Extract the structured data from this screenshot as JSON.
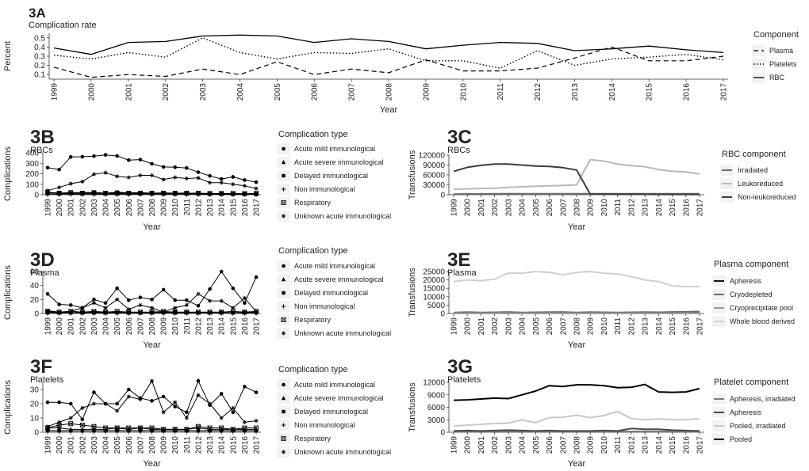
{
  "years": [
    "1999",
    "2000",
    "2001",
    "2002",
    "2003",
    "2004",
    "2005",
    "2006",
    "2007",
    "2008",
    "2009",
    "2010",
    "2011",
    "2012",
    "2013",
    "2014",
    "2015",
    "2016",
    "2017"
  ],
  "chart_data": [
    {
      "id": "3A",
      "letter": "3A",
      "subtitle": "Complication rate",
      "type": "line",
      "xlabel": "Year",
      "ylabel": "Percent",
      "ylim": [
        0.05,
        0.55
      ],
      "yticks": [
        0.1,
        0.2,
        0.3,
        0.4,
        0.5
      ],
      "ytick_labels": [
        "0.1",
        "0.2",
        "0.3",
        "0.4",
        "0.5"
      ],
      "legend_title": "Component",
      "legend_style": "line",
      "series": [
        {
          "name": "Plasma",
          "color": "#000000",
          "dash": "6,4",
          "width": 1.2,
          "values": [
            0.18,
            0.07,
            0.1,
            0.08,
            0.16,
            0.1,
            0.24,
            0.1,
            0.16,
            0.12,
            0.26,
            0.14,
            0.14,
            0.17,
            0.28,
            0.4,
            0.25,
            0.25,
            0.3
          ]
        },
        {
          "name": "Platelets",
          "color": "#000000",
          "dash": "1.5,2.5",
          "width": 1.4,
          "values": [
            0.31,
            0.27,
            0.34,
            0.29,
            0.5,
            0.34,
            0.27,
            0.34,
            0.33,
            0.38,
            0.25,
            0.25,
            0.17,
            0.36,
            0.2,
            0.27,
            0.29,
            0.32,
            0.26
          ]
        },
        {
          "name": "RBC",
          "color": "#000000",
          "dash": "",
          "width": 1.3,
          "values": [
            0.39,
            0.32,
            0.45,
            0.46,
            0.52,
            0.53,
            0.52,
            0.45,
            0.49,
            0.46,
            0.38,
            0.42,
            0.45,
            0.44,
            0.36,
            0.38,
            0.41,
            0.37,
            0.34
          ]
        }
      ]
    },
    {
      "id": "3B",
      "letter": "3B",
      "subtitle": "RBCs",
      "type": "line",
      "xlabel": "Year",
      "ylabel": "Complications",
      "ylim": [
        0,
        400
      ],
      "yticks": [
        0,
        100,
        200,
        300,
        400
      ],
      "ytick_labels": [
        "0",
        "100",
        "200",
        "300",
        "400"
      ],
      "legend_title": "Complication type",
      "legend_style": "marker",
      "series": [
        {
          "name": "Acute mild immunological",
          "marker": "dot",
          "color": "#000000",
          "values": [
            258,
            240,
            360,
            362,
            368,
            380,
            370,
            330,
            335,
            295,
            265,
            262,
            255,
            215,
            180,
            150,
            170,
            140,
            120
          ]
        },
        {
          "name": "Acute severe immunological",
          "marker": "triangle",
          "color": "#000000",
          "values": [
            10,
            8,
            12,
            10,
            11,
            10,
            9,
            10,
            9,
            8,
            8,
            7,
            8,
            7,
            6,
            6,
            5,
            5,
            4
          ]
        },
        {
          "name": "Delayed immunological",
          "marker": "square",
          "color": "#000000",
          "values": [
            20,
            15,
            18,
            20,
            22,
            15,
            25,
            18,
            20,
            15,
            18,
            15,
            16,
            12,
            10,
            10,
            8,
            8,
            10
          ]
        },
        {
          "name": "Non immunological",
          "marker": "plus",
          "color": "#000000",
          "values": [
            5,
            5,
            6,
            5,
            6,
            5,
            5,
            5,
            6,
            5,
            5,
            5,
            5,
            5,
            4,
            4,
            4,
            4,
            4
          ]
        },
        {
          "name": "Respiratory",
          "marker": "boxx",
          "color": "#000000",
          "values": [
            25,
            15,
            20,
            15,
            20,
            15,
            15,
            15,
            15,
            15,
            15,
            15,
            15,
            15,
            12,
            12,
            12,
            10,
            12
          ]
        },
        {
          "name": "Unknown acute immunological",
          "marker": "star",
          "color": "#000000",
          "values": [
            40,
            70,
            105,
            125,
            195,
            210,
            175,
            165,
            185,
            185,
            145,
            165,
            155,
            160,
            115,
            115,
            100,
            85,
            60
          ]
        }
      ]
    },
    {
      "id": "3C",
      "letter": "3C",
      "subtitle": "RBCs",
      "type": "line",
      "xlabel": "Year",
      "ylabel": "Transfusions",
      "ylim": [
        0,
        120000
      ],
      "yticks": [
        0,
        30000,
        60000,
        90000,
        120000
      ],
      "ytick_labels": [
        "0",
        "30000",
        "60000",
        "90000",
        "120000"
      ],
      "legend_title": "RBC component",
      "legend_style": "line",
      "series": [
        {
          "name": "Irradiated",
          "color": "#6a6a6a",
          "dash": "",
          "width": 2,
          "values": [
            2000,
            2500,
            2500,
            3000,
            3000,
            3000,
            3000,
            3000,
            3000,
            3000,
            3000,
            3000,
            3000,
            3000,
            3000,
            3000,
            3000,
            3000,
            3000
          ]
        },
        {
          "name": "Leukoreduced",
          "color": "#b9b9b9",
          "dash": "",
          "width": 2,
          "values": [
            16000,
            18000,
            19000,
            20000,
            22000,
            24000,
            26000,
            27000,
            28000,
            30000,
            106000,
            102000,
            93000,
            88000,
            85000,
            76000,
            71000,
            69000,
            63000
          ]
        },
        {
          "name": "Non-leukoreduced",
          "color": "#3c3c3c",
          "dash": "",
          "width": 2,
          "values": [
            71000,
            83000,
            89000,
            93000,
            93000,
            90000,
            87000,
            86000,
            82000,
            75000,
            2000,
            2000,
            1500,
            1500,
            1500,
            1000,
            1000,
            1000,
            1000
          ]
        }
      ]
    },
    {
      "id": "3D",
      "letter": "3D",
      "subtitle": "Plasma",
      "type": "line",
      "xlabel": "Year",
      "ylabel": "Complications",
      "ylim": [
        0,
        60
      ],
      "yticks": [
        0,
        20,
        40,
        60
      ],
      "ytick_labels": [
        "0",
        "20",
        "40",
        "60"
      ],
      "legend_title": "Complication type",
      "legend_style": "marker",
      "series": [
        {
          "name": "Acute mild immunological",
          "marker": "dot",
          "color": "#000000",
          "values": [
            28,
            13,
            12,
            8,
            20,
            15,
            36,
            19,
            23,
            20,
            34,
            19,
            19,
            11,
            35,
            60,
            36,
            15,
            52
          ]
        },
        {
          "name": "Acute severe immunological",
          "marker": "triangle",
          "color": "#000000",
          "values": [
            2,
            1,
            3,
            2,
            1,
            2,
            2,
            1,
            1,
            2,
            2,
            1,
            2,
            1,
            1,
            2,
            1,
            2,
            2
          ]
        },
        {
          "name": "Delayed immunological",
          "marker": "square",
          "color": "#000000",
          "values": [
            1,
            1,
            1,
            1,
            2,
            1,
            1,
            1,
            1,
            1,
            1,
            2,
            1,
            1,
            1,
            1,
            1,
            1,
            1
          ]
        },
        {
          "name": "Non immunological",
          "marker": "plus",
          "color": "#000000",
          "values": [
            1,
            1,
            1,
            1,
            1,
            1,
            1,
            1,
            1,
            1,
            1,
            1,
            1,
            1,
            1,
            1,
            1,
            1,
            1
          ]
        },
        {
          "name": "Respiratory",
          "marker": "boxx",
          "color": "#000000",
          "values": [
            3,
            2,
            3,
            2,
            3,
            2,
            3,
            2,
            2,
            2,
            3,
            2,
            2,
            2,
            2,
            2,
            3,
            2,
            3
          ]
        },
        {
          "name": "Unknown acute immunological",
          "marker": "star",
          "color": "#000000",
          "values": [
            4,
            2,
            3,
            8,
            15,
            8,
            20,
            6,
            12,
            8,
            2,
            8,
            12,
            28,
            18,
            18,
            8,
            22,
            3
          ]
        }
      ]
    },
    {
      "id": "3E",
      "letter": "3E",
      "subtitle": "Plasma",
      "type": "line",
      "xlabel": "Year",
      "ylabel": "Transfusions",
      "ylim": [
        0,
        25000
      ],
      "yticks": [
        0,
        5000,
        10000,
        15000,
        20000,
        25000
      ],
      "ytick_labels": [
        "0",
        "5000",
        "10000",
        "15000",
        "20000",
        "25000"
      ],
      "legend_title": "Plasma component",
      "legend_style": "line",
      "series": [
        {
          "name": "Apheresis",
          "color": "#111111",
          "dash": "",
          "width": 2,
          "values": [
            200,
            200,
            200,
            200,
            200,
            200,
            200,
            200,
            200,
            200,
            200,
            200,
            200,
            200,
            200,
            200,
            200,
            200,
            200
          ]
        },
        {
          "name": "Cryodepleted",
          "color": "#6a6a6a",
          "dash": "",
          "width": 2,
          "values": [
            500,
            800,
            600,
            700,
            900,
            600,
            700,
            800,
            900,
            600,
            800,
            700,
            600,
            700,
            800,
            700,
            900,
            1000,
            1200
          ]
        },
        {
          "name": "Cryoprecipitate pool",
          "color": "#9a9a9a",
          "dash": "",
          "width": 2,
          "values": [
            100,
            100,
            100,
            100,
            100,
            100,
            100,
            100,
            100,
            100,
            100,
            100,
            100,
            100,
            100,
            100,
            100,
            100,
            100
          ]
        },
        {
          "name": "Whole blood derived",
          "color": "#cfcfcf",
          "dash": "",
          "width": 2,
          "values": [
            19000,
            20000,
            19500,
            20500,
            24000,
            24000,
            25000,
            24500,
            23000,
            24500,
            25000,
            24000,
            23500,
            22000,
            20000,
            19000,
            16500,
            16000,
            16000
          ]
        }
      ]
    },
    {
      "id": "3F",
      "letter": "3F",
      "subtitle": "Platelets",
      "type": "line",
      "xlabel": "Year",
      "ylabel": "Complications",
      "ylim": [
        0,
        35
      ],
      "yticks": [
        0,
        10,
        20,
        30
      ],
      "ytick_labels": [
        "0",
        "10",
        "20",
        "30"
      ],
      "legend_title": "Complication type",
      "legend_style": "marker",
      "series": [
        {
          "name": "Acute mild immunological",
          "marker": "dot",
          "color": "#000000",
          "values": [
            21,
            21,
            20,
            9,
            28,
            20,
            20,
            30,
            24,
            22,
            25,
            18,
            14,
            36,
            19,
            27,
            14,
            32,
            28
          ]
        },
        {
          "name": "Acute severe immunological",
          "marker": "triangle",
          "color": "#000000",
          "values": [
            3,
            3,
            2,
            2,
            2,
            2,
            3,
            2,
            3,
            2,
            2,
            2,
            2,
            3,
            2,
            2,
            2,
            2,
            2
          ]
        },
        {
          "name": "Delayed immunological",
          "marker": "square",
          "color": "#000000",
          "values": [
            1,
            1,
            1,
            1,
            1,
            1,
            1,
            1,
            1,
            1,
            1,
            1,
            1,
            1,
            1,
            1,
            1,
            1,
            1
          ]
        },
        {
          "name": "Non immunological",
          "marker": "plus",
          "color": "#000000",
          "values": [
            1,
            1,
            1,
            1,
            1,
            1,
            1,
            1,
            1,
            1,
            1,
            1,
            1,
            1,
            1,
            1,
            1,
            1,
            1
          ]
        },
        {
          "name": "Respiratory",
          "marker": "boxx",
          "color": "#000000",
          "values": [
            3,
            5,
            6,
            5,
            4,
            3,
            3,
            3,
            3,
            3,
            2,
            2,
            2,
            4,
            3,
            3,
            2,
            3,
            3
          ]
        },
        {
          "name": "Unknown acute immunological",
          "marker": "star",
          "color": "#000000",
          "values": [
            4,
            7,
            10,
            17,
            20,
            20,
            15,
            25,
            23,
            36,
            14,
            21,
            10,
            26,
            20,
            10,
            17,
            7,
            8
          ]
        }
      ]
    },
    {
      "id": "3G",
      "letter": "3G",
      "subtitle": "Platelets",
      "type": "line",
      "xlabel": "Year",
      "ylabel": "Transfusions",
      "ylim": [
        0,
        12000
      ],
      "yticks": [
        0,
        3000,
        6000,
        9000,
        12000
      ],
      "ytick_labels": [
        "0",
        "3000",
        "6000",
        "9000",
        "12000"
      ],
      "legend_title": "Platelet component",
      "legend_style": "line",
      "series": [
        {
          "name": "Apheresis, irradiated",
          "color": "#7a7a7a",
          "dash": "",
          "width": 2,
          "values": [
            200,
            200,
            200,
            200,
            200,
            200,
            200,
            200,
            200,
            200,
            200,
            200,
            200,
            200,
            200,
            200,
            200,
            200,
            200
          ]
        },
        {
          "name": "Apheresis",
          "color": "#4a4a4a",
          "dash": "",
          "width": 2,
          "values": [
            300,
            400,
            300,
            400,
            500,
            400,
            300,
            400,
            300,
            300,
            300,
            400,
            300,
            900,
            700,
            700,
            500,
            400,
            300
          ]
        },
        {
          "name": "Pooled, irradiated",
          "color": "#c8c8c8",
          "dash": "",
          "width": 2,
          "values": [
            1500,
            1700,
            1900,
            2100,
            2200,
            3000,
            2300,
            3500,
            3600,
            4100,
            3500,
            4000,
            5000,
            3300,
            3000,
            3200,
            3000,
            3000,
            3300
          ]
        },
        {
          "name": "Pooled",
          "color": "#000000",
          "dash": "",
          "width": 2,
          "values": [
            7700,
            7800,
            8000,
            8200,
            8100,
            9000,
            9900,
            11200,
            11000,
            11400,
            11400,
            11200,
            10700,
            10800,
            11500,
            9700,
            9600,
            9700,
            10500
          ]
        }
      ]
    }
  ]
}
